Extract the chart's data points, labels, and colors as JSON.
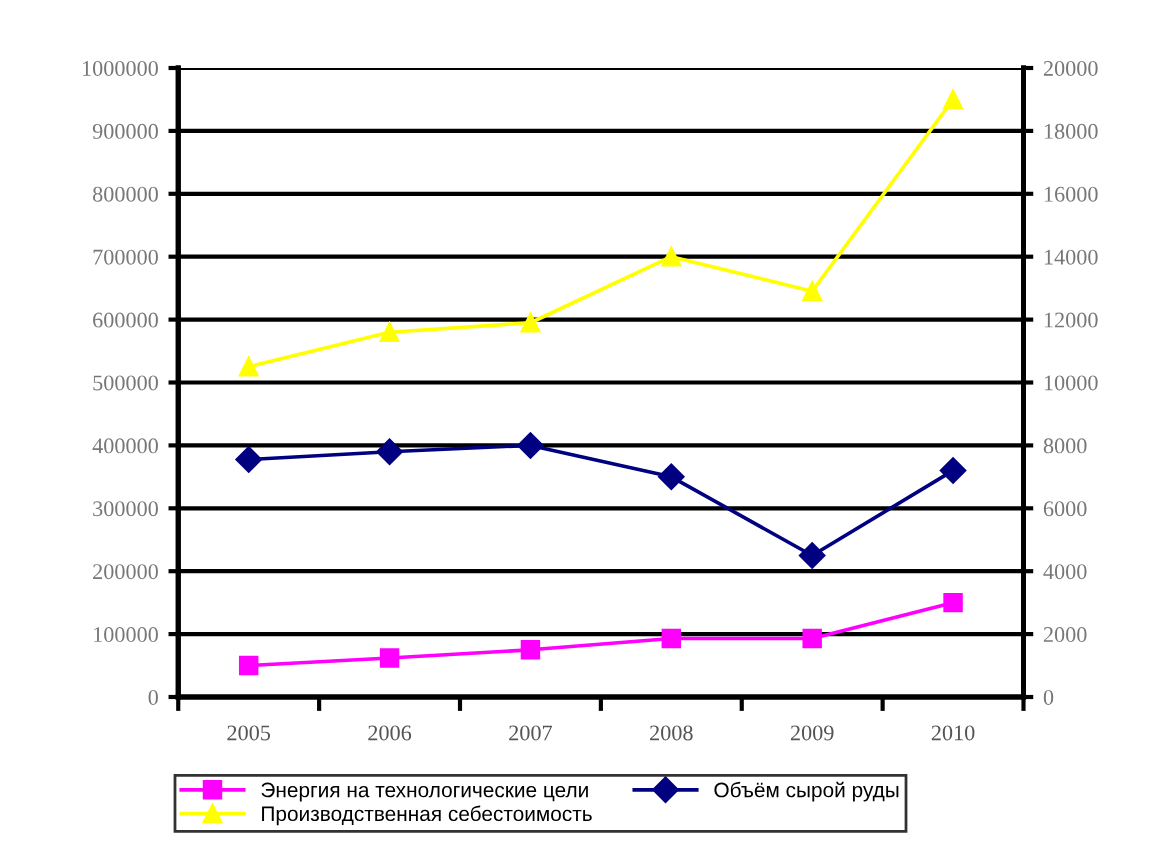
{
  "chart_data": {
    "type": "line",
    "categories": [
      "2005",
      "2006",
      "2007",
      "2008",
      "2009",
      "2010"
    ],
    "series": [
      {
        "name": "Энергия на технологические цели",
        "color": "#ff00ff",
        "marker": "square",
        "values": [
          50000,
          62000,
          75000,
          93000,
          93000,
          150000
        ]
      },
      {
        "name": "Производственная себестоимость",
        "color": "#ffff00",
        "marker": "triangle",
        "values": [
          525000,
          580000,
          595000,
          700000,
          645000,
          950000
        ]
      },
      {
        "name": "Объём сырой руды",
        "color": "#000080",
        "marker": "diamond",
        "axis": "y2",
        "values": [
          7550,
          7800,
          8000,
          7000,
          4500,
          7200
        ]
      }
    ],
    "ylim": [
      0,
      1000000
    ],
    "yticks": [
      0,
      100000,
      200000,
      300000,
      400000,
      500000,
      600000,
      700000,
      800000,
      900000,
      1000000
    ],
    "y2lim": [
      0,
      20000
    ],
    "y2ticks": [
      0,
      2000,
      4000,
      6000,
      8000,
      10000,
      12000,
      14000,
      16000,
      18000,
      20000
    ],
    "grid": "y",
    "legend": "bottom",
    "line_style": "solid"
  }
}
